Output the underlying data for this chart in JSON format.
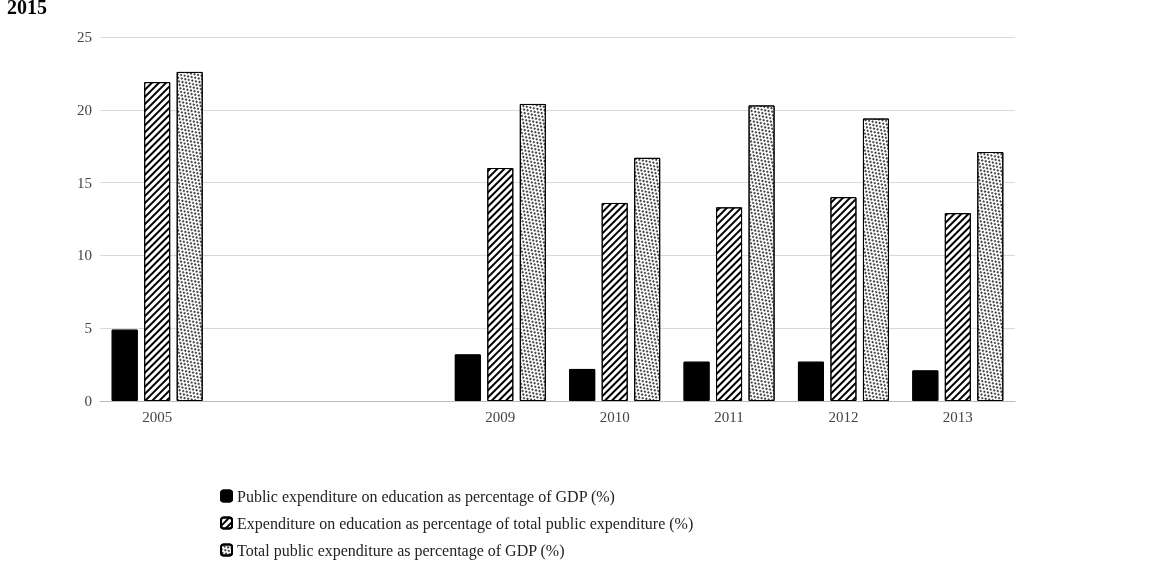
{
  "chart_data": {
    "type": "bar",
    "title": "2015",
    "categories": [
      "2005",
      null,
      null,
      "2009",
      "2010",
      "2011",
      "2012",
      "2013"
    ],
    "series": [
      {
        "name": "Public expenditure on education as percentage of GDP (%)",
        "color": "#000000",
        "values": [
          4.9,
          null,
          null,
          3.2,
          2.2,
          2.7,
          2.7,
          2.1
        ]
      },
      {
        "name": "Expenditure on education as percentage of total public expenditure (%)",
        "color": "#ffffff",
        "values": [
          21.9,
          null,
          null,
          16.0,
          13.6,
          13.3,
          14.0,
          12.9
        ]
      },
      {
        "name": "Total public expenditure as percentage of GDP (%)",
        "color": "#ffffff",
        "values": [
          22.6,
          null,
          null,
          20.4,
          16.7,
          20.3,
          19.4,
          17.1
        ]
      }
    ],
    "ylim": [
      0,
      25
    ],
    "yticks": [
      0,
      5,
      10,
      15,
      20,
      25
    ],
    "grid": "y",
    "legend": "bottom"
  }
}
